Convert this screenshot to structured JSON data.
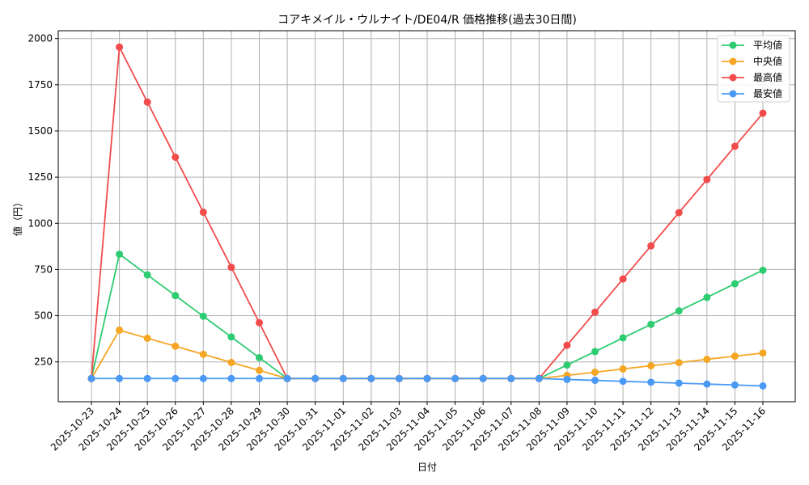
{
  "chart_data": {
    "type": "line",
    "title": "コアキメイル・ウルナイト/DE04/R 価格推移(過去30日間)",
    "xlabel": "日付",
    "ylabel": "値（円）",
    "ylim": [
      70,
      2020
    ],
    "yticks": [
      250,
      500,
      750,
      1000,
      1250,
      1500,
      1750,
      2000
    ],
    "grid": true,
    "legend_position": "upper right",
    "categories": [
      "2025-10-23",
      "2025-10-24",
      "2025-10-25",
      "2025-10-26",
      "2025-10-27",
      "2025-10-28",
      "2025-10-29",
      "2025-10-30",
      "2025-10-31",
      "2025-11-01",
      "2025-11-02",
      "2025-11-03",
      "2025-11-04",
      "2025-11-05",
      "2025-11-06",
      "2025-11-07",
      "2025-11-08",
      "2025-11-09",
      "2025-11-10",
      "2025-11-11",
      "2025-11-12",
      "2025-11-13",
      "2025-11-14",
      "2025-11-15",
      "2025-11-16"
    ],
    "series": [
      {
        "name": "平均値",
        "color": "#2ecc71",
        "values": [
          160,
          833,
          721,
          609,
          497,
          385,
          273,
          160,
          160,
          160,
          160,
          160,
          160,
          160,
          160,
          160,
          160,
          233,
          306,
          380,
          453,
          526,
          599,
          673,
          746
        ]
      },
      {
        "name": "中央値",
        "color": "#f5a623",
        "values": [
          160,
          422,
          378,
          335,
          291,
          247,
          204,
          160,
          160,
          160,
          160,
          160,
          160,
          160,
          160,
          160,
          160,
          177,
          194,
          212,
          229,
          246,
          264,
          281,
          298
        ]
      },
      {
        "name": "最高値",
        "color": "#f24b4b",
        "values": [
          160,
          1954,
          1656,
          1358,
          1060,
          762,
          462,
          160,
          160,
          160,
          160,
          160,
          160,
          160,
          160,
          160,
          160,
          340,
          519,
          699,
          878,
          1058,
          1237,
          1417,
          1596
        ]
      },
      {
        "name": "最安値",
        "color": "#4a9af5",
        "values": [
          160,
          160,
          160,
          160,
          160,
          160,
          160,
          160,
          160,
          160,
          160,
          160,
          160,
          160,
          160,
          160,
          160,
          155,
          150,
          145,
          140,
          135,
          130,
          125,
          120
        ]
      }
    ]
  }
}
